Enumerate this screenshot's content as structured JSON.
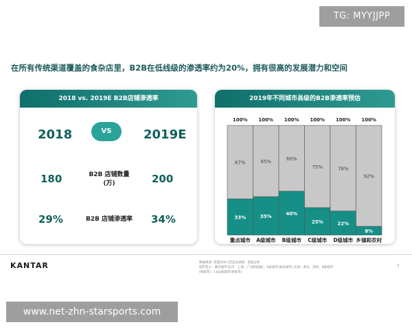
{
  "watermark_top": "TG: MYYJJPP",
  "headline": "在所有传统渠道覆盖的食杂店里，B2B在低线级的渗透率约为20%，拥有很高的发展潜力和空间",
  "left_panel": {
    "title": "2018 vs. 2019E B2B店铺渗透率",
    "year_left": "2018",
    "vs": "VS",
    "year_right": "2019E",
    "rows": [
      {
        "left": "180",
        "label_line1": "B2B 店铺数量",
        "label_line2": "(万)",
        "right": "200"
      },
      {
        "left": "29%",
        "label_line1": "B2B 店铺渗透率",
        "label_line2": "",
        "right": "34%"
      }
    ]
  },
  "chart_data": {
    "type": "bar",
    "stacked": true,
    "title": "2019年不同城市县级的B2B渗透率预估",
    "categories": [
      "重点城市",
      "A级城市",
      "B级城市",
      "C级城市",
      "D级城市",
      "乡镇和农村"
    ],
    "total_labels": [
      "100%",
      "100%",
      "100%",
      "100%",
      "100%",
      "100%"
    ],
    "series": [
      {
        "values": [
          33,
          35,
          40,
          25,
          22,
          8
        ],
        "labels": [
          "33%",
          "35%",
          "40%",
          "25%",
          "22%",
          "8%"
        ],
        "color": "#168f87"
      },
      {
        "values": [
          67,
          65,
          60,
          75,
          78,
          92
        ],
        "labels": [
          "67%",
          "65%",
          "60%",
          "75%",
          "78%",
          "92%"
        ],
        "color": "#c8c8c8"
      }
    ],
    "ylim": [
      0,
      100
    ]
  },
  "footer": {
    "brand": "KANTAR",
    "source_line1": "数据来源: 凯度B2B小店店主调研、凯度分析",
    "source_line2": "城市定义：重点城市(北京、上海、广州和成都)、A级城市(省会城市+天津、青岛、深圳、8级城市",
    "source_line3": "(地级市)、C&D级城市(县级市)",
    "page": "3"
  },
  "watermark_bottom": "www.net-zhn-starsports.com"
}
